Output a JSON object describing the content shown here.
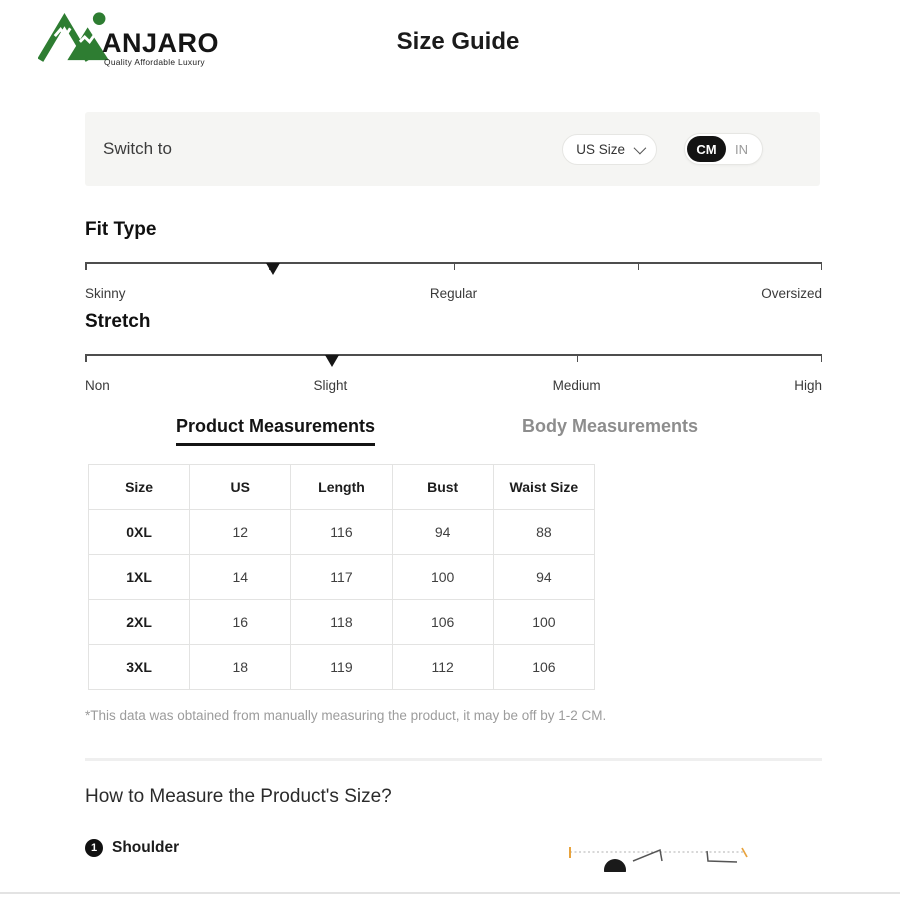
{
  "brand": {
    "name": "ANJARO",
    "tagline": "Quality Affordable Luxury",
    "colors": {
      "mountain_green": "#2e7d32",
      "accent_orange": "#e8a33d",
      "toggle_black": "#131313"
    }
  },
  "page_title": "Size Guide",
  "switch_bar": {
    "label": "Switch to",
    "size_dropdown": {
      "value": "US Size"
    },
    "unit_toggle": {
      "options": [
        "CM",
        "IN"
      ],
      "selected": "CM"
    }
  },
  "sliders": [
    {
      "title": "Fit Type",
      "labels": [
        {
          "text": "Skinny",
          "pct": 0
        },
        {
          "text": "Regular",
          "pct": 50
        },
        {
          "text": "Oversized",
          "pct": 100
        }
      ],
      "ticks_pct": [
        0,
        25,
        50,
        75,
        100
      ],
      "marker_pct": 25.5
    },
    {
      "title": "Stretch",
      "labels": [
        {
          "text": "Non",
          "pct": 0
        },
        {
          "text": "Slight",
          "pct": 33.3
        },
        {
          "text": "Medium",
          "pct": 66.7
        },
        {
          "text": "High",
          "pct": 100
        }
      ],
      "ticks_pct": [
        0,
        33.3,
        66.7,
        100
      ],
      "marker_pct": 33.5
    }
  ],
  "tabs": [
    {
      "label": "Product Measurements",
      "active": true
    },
    {
      "label": "Body Measurements",
      "active": false
    }
  ],
  "table": {
    "headers": [
      "Size",
      "US",
      "Length",
      "Bust",
      "Waist Size"
    ],
    "rows": [
      [
        "0XL",
        "12",
        "116",
        "94",
        "88"
      ],
      [
        "1XL",
        "14",
        "117",
        "100",
        "94"
      ],
      [
        "2XL",
        "16",
        "118",
        "106",
        "100"
      ],
      [
        "3XL",
        "18",
        "119",
        "112",
        "106"
      ]
    ]
  },
  "footnote": "*This data was obtained from manually measuring the product, it may be off by 1-2 CM.",
  "how_to": {
    "title": "How to Measure the Product's Size?",
    "steps": [
      {
        "number": "1",
        "label": "Shoulder"
      }
    ]
  }
}
